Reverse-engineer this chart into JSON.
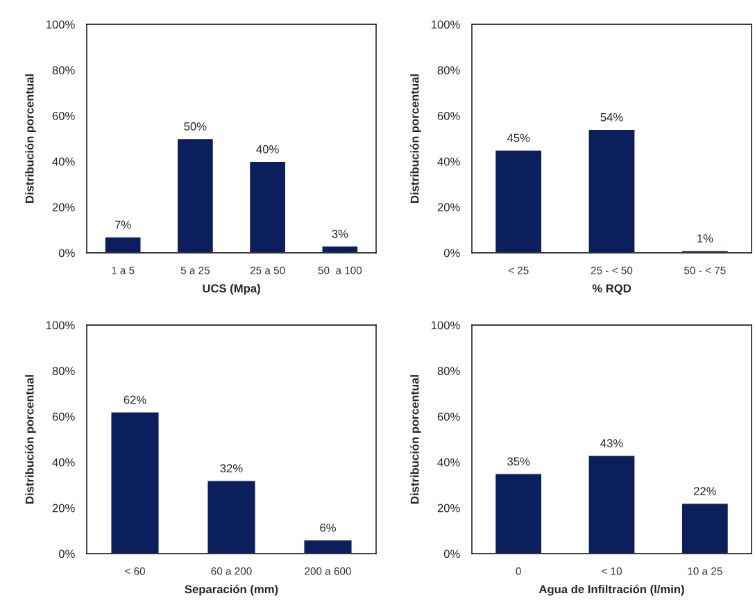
{
  "chart_data": [
    {
      "type": "bar",
      "xlabel": "UCS (Mpa)",
      "ylabel": "Distribución porcentual",
      "categories": [
        "1 a 5",
        "5 a 25",
        "25 a 50",
        "50  a 100"
      ],
      "values": [
        7,
        50,
        40,
        3
      ],
      "value_labels": [
        "7%",
        "50%",
        "40%",
        "3%"
      ],
      "color": "#0b1f5c",
      "ylim": [
        0,
        100
      ],
      "yticks": [
        {
          "value": 0,
          "label": "0%"
        },
        {
          "value": 20,
          "label": "20%"
        },
        {
          "value": 40,
          "label": "40%"
        },
        {
          "value": 60,
          "label": "60%"
        },
        {
          "value": 80,
          "label": "80%"
        },
        {
          "value": 100,
          "label": "100%"
        }
      ],
      "grid": false,
      "legend": false
    },
    {
      "type": "bar",
      "xlabel": "% RQD",
      "ylabel": "Distribución porcentual",
      "categories": [
        "< 25",
        "25 - < 50",
        "50 - < 75"
      ],
      "values": [
        45,
        54,
        1
      ],
      "value_labels": [
        "45%",
        "54%",
        "1%"
      ],
      "color": "#0b1f5c",
      "ylim": [
        0,
        100
      ],
      "yticks": [
        {
          "value": 0,
          "label": "0%"
        },
        {
          "value": 20,
          "label": "20%"
        },
        {
          "value": 40,
          "label": "40%"
        },
        {
          "value": 60,
          "label": "60%"
        },
        {
          "value": 80,
          "label": "80%"
        },
        {
          "value": 100,
          "label": "100%"
        }
      ],
      "grid": false,
      "legend": false
    },
    {
      "type": "bar",
      "xlabel": "Separación (mm)",
      "ylabel": "Distribución porcentual",
      "categories": [
        "< 60",
        "60 a 200",
        "200 a 600"
      ],
      "values": [
        62,
        32,
        6
      ],
      "value_labels": [
        "62%",
        "32%",
        "6%"
      ],
      "color": "#0b1f5c",
      "ylim": [
        0,
        100
      ],
      "yticks": [
        {
          "value": 0,
          "label": "0%"
        },
        {
          "value": 20,
          "label": "20%"
        },
        {
          "value": 40,
          "label": "40%"
        },
        {
          "value": 60,
          "label": "60%"
        },
        {
          "value": 80,
          "label": "80%"
        },
        {
          "value": 100,
          "label": "100%"
        }
      ],
      "grid": false,
      "legend": false
    },
    {
      "type": "bar",
      "xlabel": "Agua de Infiltración (l/min)",
      "ylabel": "Distribución porcentual",
      "categories": [
        "0",
        "< 10",
        "10 a 25"
      ],
      "values": [
        35,
        43,
        22
      ],
      "value_labels": [
        "35%",
        "43%",
        "22%"
      ],
      "color": "#0b1f5c",
      "ylim": [
        0,
        100
      ],
      "yticks": [
        {
          "value": 0,
          "label": "0%"
        },
        {
          "value": 20,
          "label": "20%"
        },
        {
          "value": 40,
          "label": "40%"
        },
        {
          "value": 60,
          "label": "60%"
        },
        {
          "value": 80,
          "label": "80%"
        },
        {
          "value": 100,
          "label": "100%"
        }
      ],
      "grid": false,
      "legend": false
    }
  ]
}
